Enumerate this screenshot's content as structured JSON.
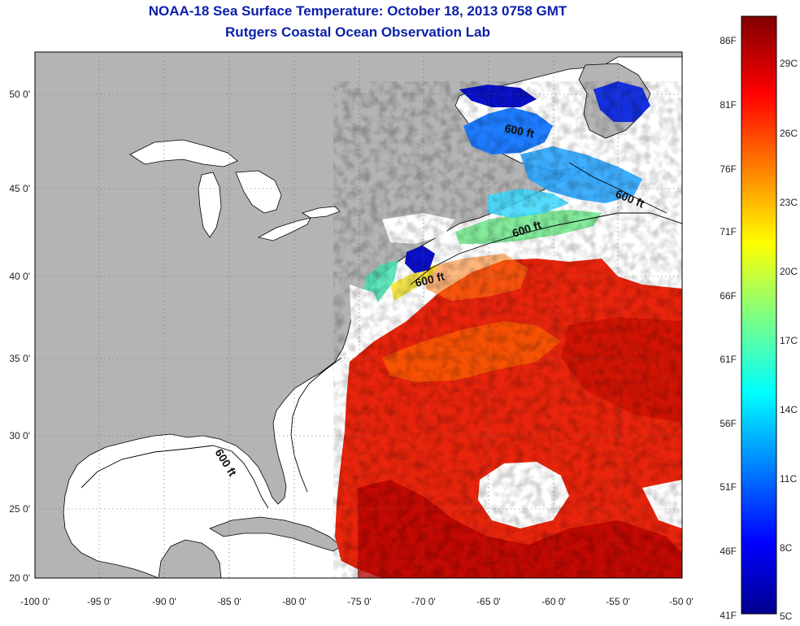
{
  "header": {
    "title": "NOAA-18 Sea Surface Temperature:  October 18, 2013 0758 GMT",
    "subtitle": "Rutgers Coastal Ocean Observation Lab"
  },
  "map": {
    "lon_ticks": [
      "-100 0'",
      "-95 0'",
      "-90 0'",
      "-85 0'",
      "-80 0'",
      "-75 0'",
      "-70 0'",
      "-65 0'",
      "-60 0'",
      "-55 0'",
      "-50 0'"
    ],
    "lat_ticks": [
      "50 0'",
      "45 0'",
      "40 0'",
      "35 0'",
      "30 0'",
      "25 0'",
      "20 0'"
    ],
    "contour_label": "600 ft",
    "colors": {
      "land": "#b4b4b4",
      "water_no_data": "#ffffff",
      "coastline": "#000000"
    }
  },
  "colorbar": {
    "fahrenheit_labels": [
      "86F",
      "81F",
      "76F",
      "71F",
      "66F",
      "61F",
      "56F",
      "51F",
      "46F",
      "41F"
    ],
    "celsius_labels": [
      "29C",
      "26C",
      "23C",
      "20C",
      "17C",
      "14C",
      "11C",
      "8C",
      "5C"
    ],
    "range_c": [
      5,
      31
    ],
    "colormap": "jet"
  }
}
